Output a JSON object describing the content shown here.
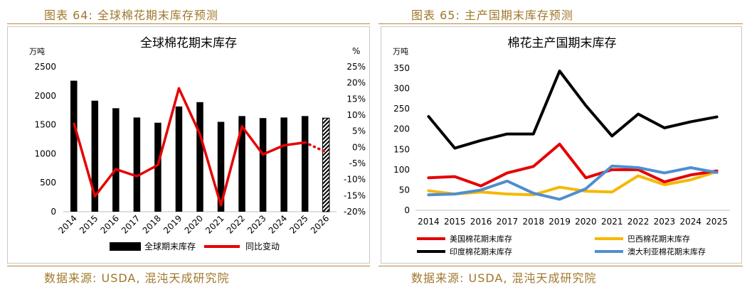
{
  "left": {
    "figure_title": "图表 64:  全球棉花期末库存预测",
    "source": "数据来源:  USDA,  混沌天成研究院"
  },
  "right": {
    "figure_title": "图表 65:  主产国期末库存预测",
    "source": "数据来源:  USDA,  混沌天成研究院"
  },
  "chart_data": [
    {
      "type": "bar+line",
      "title": "全球棉花期末库存",
      "ylabel_left": "万吨",
      "ylabel_right": "%",
      "ylim_left": [
        0,
        2500
      ],
      "yticks_left": [
        "0",
        "500",
        "1000",
        "1500",
        "2000",
        "2500"
      ],
      "ylim_right": [
        -20,
        25
      ],
      "yticks_right": [
        "-20%",
        "-15%",
        "-10%",
        "-5%",
        "0%",
        "5%",
        "10%",
        "15%",
        "20%",
        "25%"
      ],
      "categories": [
        "2014",
        "2015",
        "2016",
        "2017",
        "2018",
        "2019",
        "2020",
        "2021",
        "2022",
        "2023",
        "2024",
        "2025",
        "2026"
      ],
      "series": [
        {
          "name": "全球期末库存",
          "kind": "bar",
          "color": "#000000",
          "values": [
            2260,
            1915,
            1785,
            1625,
            1535,
            1815,
            1890,
            1550,
            1650,
            1615,
            1625,
            1650,
            1615
          ],
          "hatched_last": true
        },
        {
          "name": "同比变动",
          "kind": "line",
          "color": "#e50000",
          "values": [
            7.6,
            -15.2,
            -6.8,
            -9.0,
            -5.5,
            18.3,
            4.1,
            -18.0,
            6.5,
            -2.2,
            0.6,
            1.5,
            -1.5
          ],
          "dotted_from_index": 11
        }
      ],
      "legend": [
        "全球期末库存",
        "同比变动"
      ]
    },
    {
      "type": "line",
      "title": "棉花主产国期末库存",
      "ylabel": "万吨",
      "ylim": [
        0,
        350
      ],
      "yticks": [
        "0",
        "50",
        "100",
        "150",
        "200",
        "250",
        "300",
        "350"
      ],
      "categories": [
        "2014",
        "2015",
        "2016",
        "2017",
        "2018",
        "2019",
        "2020",
        "2021",
        "2022",
        "2023",
        "2024",
        "2025"
      ],
      "series": [
        {
          "name": "美国棉花期末库存",
          "color": "#e50000",
          "values": [
            80,
            83,
            60,
            92,
            108,
            163,
            80,
            100,
            100,
            70,
            87,
            97
          ]
        },
        {
          "name": "巴西棉花期末库存",
          "color": "#f5b800",
          "values": [
            48,
            40,
            45,
            40,
            38,
            57,
            47,
            45,
            85,
            63,
            75,
            95
          ]
        },
        {
          "name": "印度棉花期末库存",
          "color": "#000000",
          "values": [
            231,
            153,
            172,
            188,
            188,
            343,
            258,
            183,
            237,
            203,
            218,
            230
          ]
        },
        {
          "name": "澳大利亚棉花期末库存",
          "color": "#4f8ed0",
          "values": [
            38,
            40,
            50,
            72,
            42,
            27,
            53,
            109,
            105,
            92,
            105,
            93
          ]
        }
      ],
      "legend": [
        "美国棉花期末库存",
        "巴西棉花期末库存",
        "印度棉花期末库存",
        "澳大利亚棉花期末库存"
      ]
    }
  ]
}
